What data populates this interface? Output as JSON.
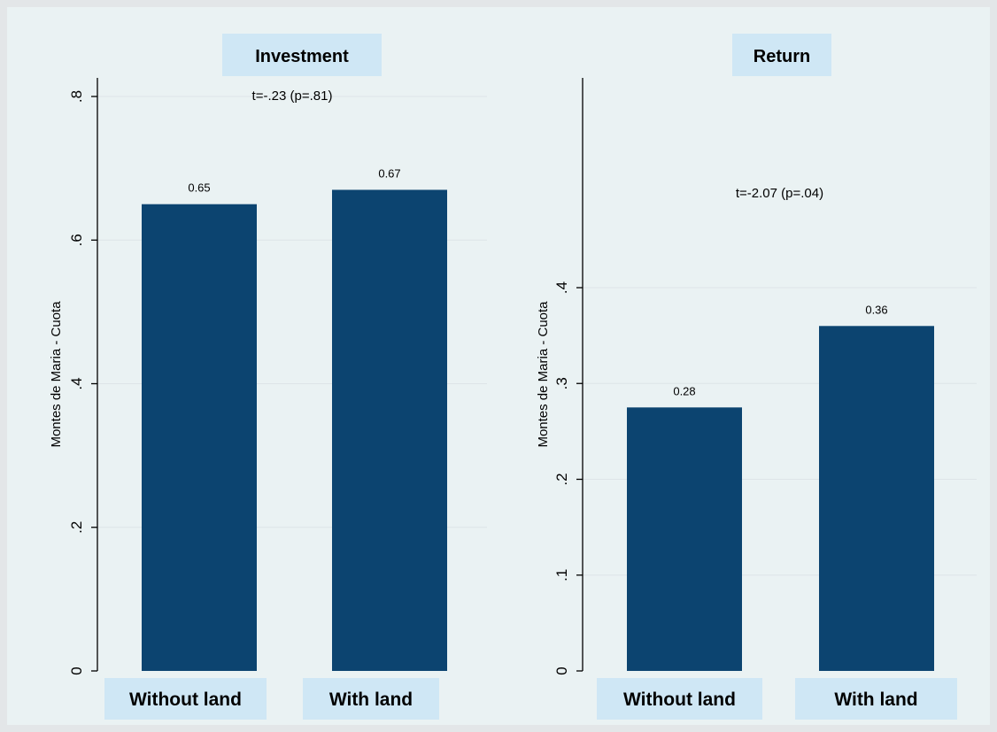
{
  "chart_data": [
    {
      "type": "bar",
      "title": "Investment",
      "ylabel": "Montes de Maria - Cuota",
      "categories": [
        "Without land",
        "With land"
      ],
      "values": [
        0.65,
        0.67
      ],
      "value_labels": [
        "0.65",
        "0.67"
      ],
      "yticks": [
        0,
        0.2,
        0.4,
        0.6,
        0.8
      ],
      "ytick_labels": [
        "0",
        ".2",
        ".4",
        ".6",
        ".8"
      ],
      "ylim": [
        0,
        0.8
      ],
      "annotation": "t=-.23 (p=.81)",
      "grid": true,
      "color": "#0c4470"
    },
    {
      "type": "bar",
      "title": "Return",
      "ylabel": "Montes de Maria - Cuota",
      "categories": [
        "Without land",
        "With land"
      ],
      "values": [
        0.275,
        0.36
      ],
      "value_labels": [
        "0.28",
        "0.36"
      ],
      "yticks": [
        0,
        0.1,
        0.2,
        0.3,
        0.4
      ],
      "ytick_labels": [
        "0",
        ".1",
        ".2",
        ".3",
        ".4"
      ],
      "ylim": [
        0,
        0.4
      ],
      "annotation": "t=-2.07 (p=.04)",
      "grid": true,
      "color": "#0c4470"
    }
  ]
}
